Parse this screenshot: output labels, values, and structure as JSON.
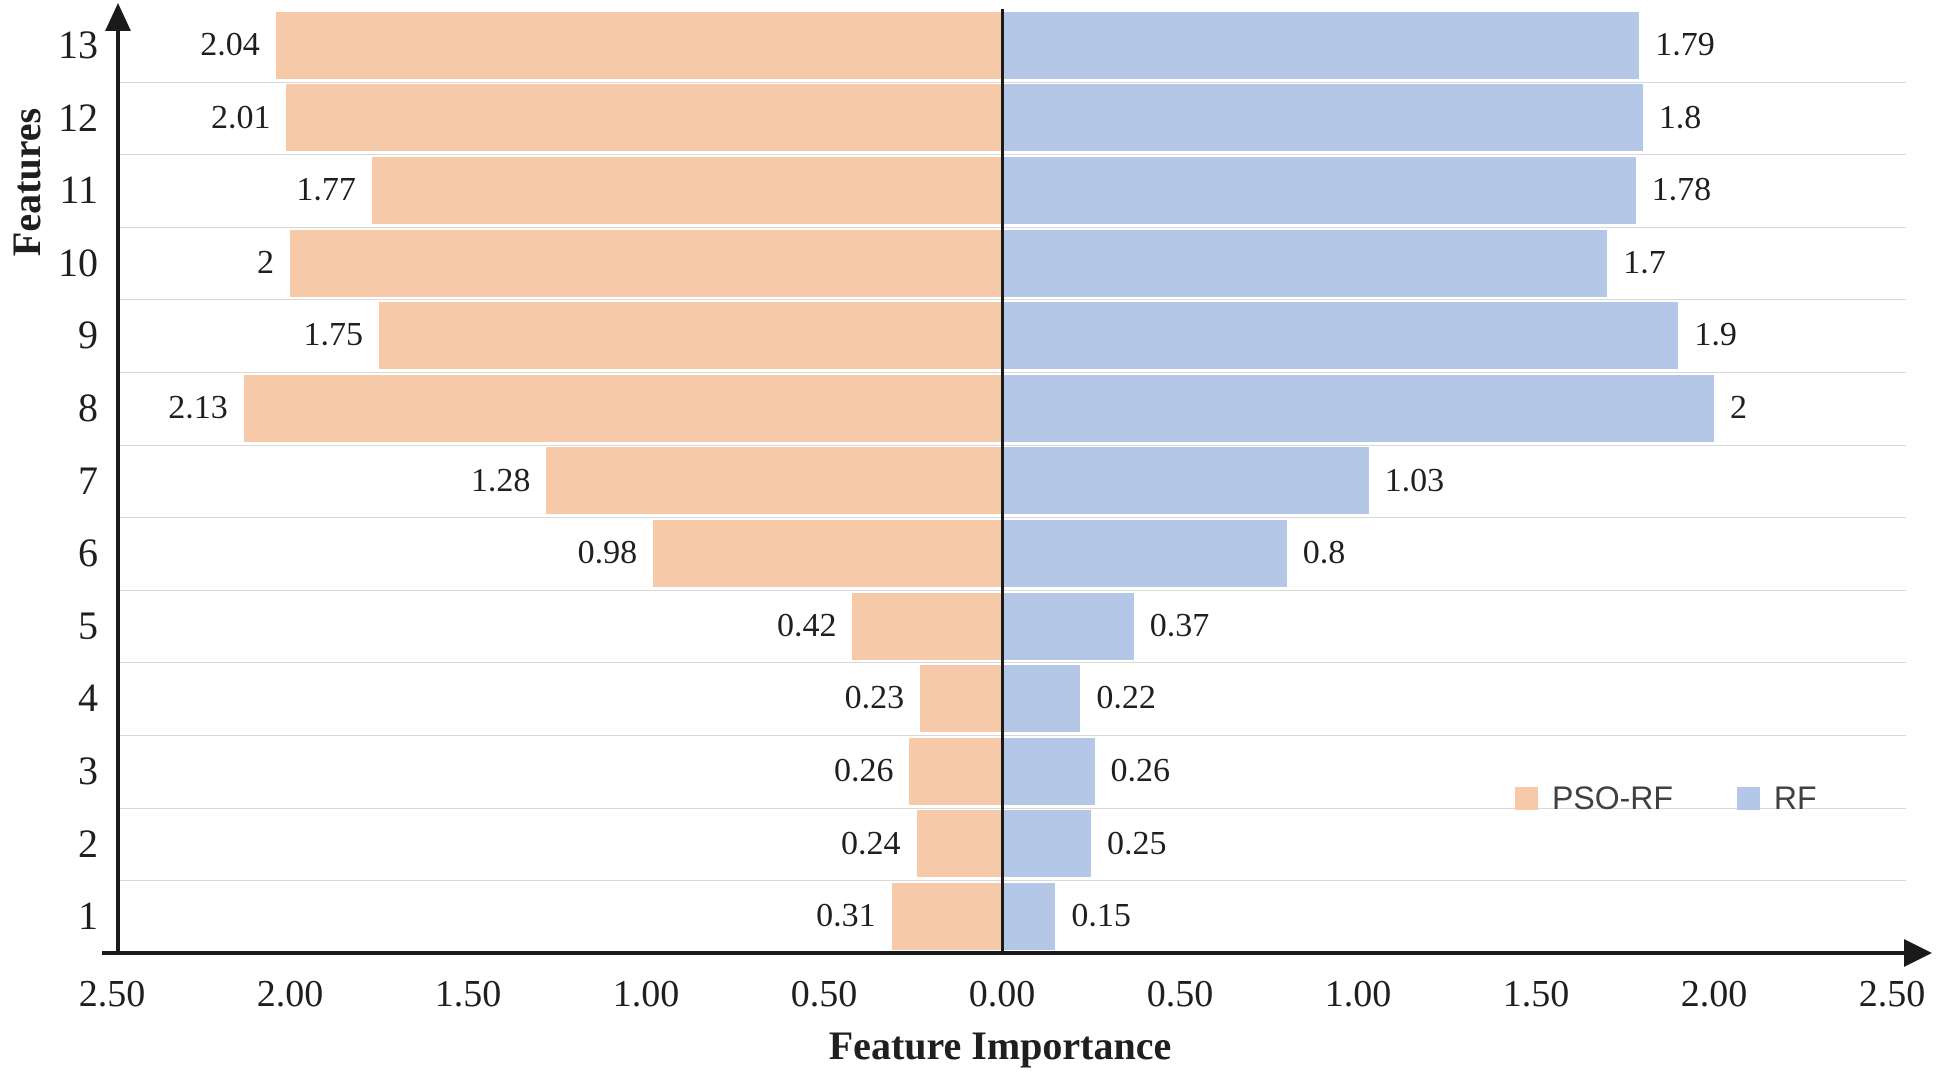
{
  "figure": {
    "y_axis_title": "Features",
    "x_axis_title": "Feature Importance"
  },
  "chart_data": {
    "type": "bar",
    "subtype": "diverging horizontal butterfly / tornado chart",
    "title": "",
    "xlabel": "Feature Importance",
    "ylabel": "Features",
    "categories": [
      "13",
      "12",
      "11",
      "10",
      "9",
      "8",
      "7",
      "6",
      "5",
      "4",
      "3",
      "2",
      "1"
    ],
    "series": [
      {
        "name": "PSO-RF",
        "side": "left",
        "color": "#F6C9A8",
        "values": [
          2.04,
          2.01,
          1.77,
          2,
          1.75,
          2.13,
          1.28,
          0.98,
          0.42,
          0.23,
          0.26,
          0.24,
          0.31
        ],
        "labels": [
          "2.04",
          "2.01",
          "1.77",
          "2",
          "1.75",
          "2.13",
          "1.28",
          "0.98",
          "0.42",
          "0.23",
          "0.26",
          "0.24",
          "0.31"
        ]
      },
      {
        "name": "RF",
        "side": "right",
        "color": "#B4C7E7",
        "values": [
          1.79,
          1.8,
          1.78,
          1.7,
          1.9,
          2,
          1.03,
          0.8,
          0.37,
          0.22,
          0.26,
          0.25,
          0.15
        ],
        "labels": [
          "1.79",
          "1.8",
          "1.78",
          "1.7",
          "1.9",
          "2",
          "1.03",
          "0.8",
          "0.37",
          "0.22",
          "0.26",
          "0.25",
          "0.15"
        ]
      }
    ],
    "x_ticks": [
      "2.50",
      "2.00",
      "1.50",
      "1.00",
      "0.50",
      "0.00",
      "0.50",
      "1.00",
      "1.50",
      "2.00",
      "2.50"
    ],
    "xlim_abs": [
      0,
      2.5
    ],
    "x_tick_step": 0.5,
    "grid": "light gray row-separator lines",
    "legend_position": "inside plot, middle right",
    "legend": [
      {
        "label": "PSO-RF",
        "color": "#F6C9A8"
      },
      {
        "label": "RF",
        "color": "#B4C7E7"
      }
    ]
  }
}
